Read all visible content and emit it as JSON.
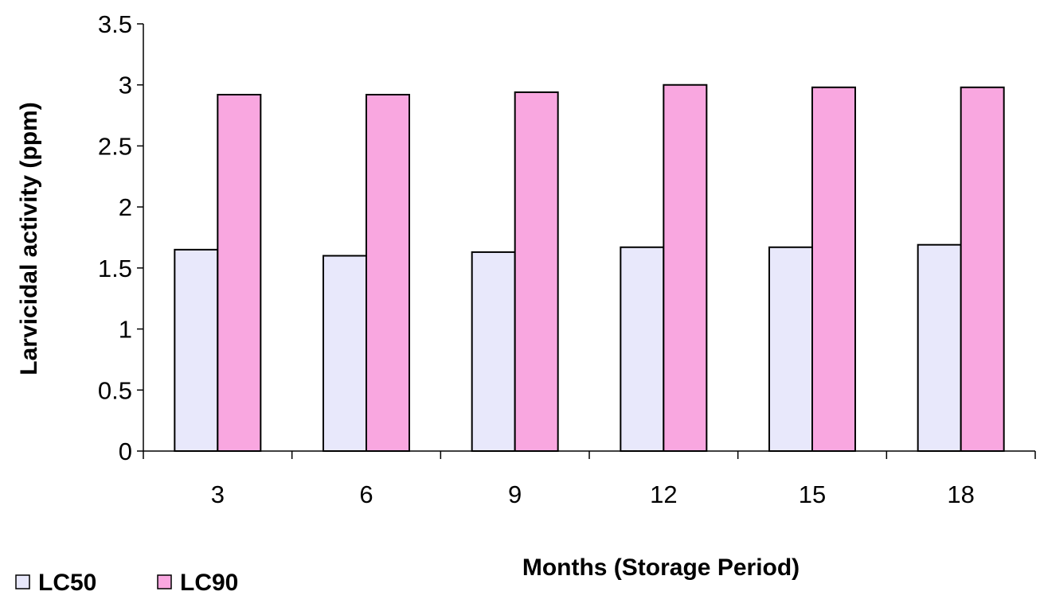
{
  "chart_data": {
    "type": "bar",
    "title": "",
    "xlabel": "Months (Storage Period)",
    "ylabel": "Larvicidal activity (ppm)",
    "categories": [
      "3",
      "6",
      "9",
      "12",
      "15",
      "18"
    ],
    "ylim": [
      0,
      3.5
    ],
    "yticks": [
      "0",
      "0.5",
      "1",
      "1.5",
      "2",
      "2.5",
      "3",
      "3.5"
    ],
    "grid": false,
    "legend_position": "bottom-left",
    "series": [
      {
        "name": "LC50",
        "color": "#e8e8fb",
        "values": [
          1.65,
          1.6,
          1.63,
          1.67,
          1.67,
          1.69
        ]
      },
      {
        "name": "LC90",
        "color": "#f9a7e0",
        "values": [
          2.92,
          2.92,
          2.94,
          3.0,
          2.98,
          2.98
        ]
      }
    ]
  }
}
